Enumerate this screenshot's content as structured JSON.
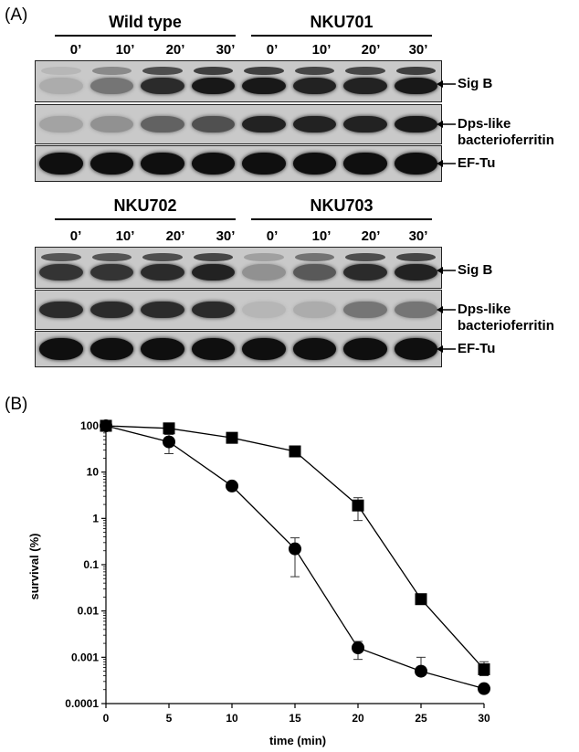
{
  "panel_a": {
    "label": "(A)",
    "upper": {
      "groups": [
        "Wild type",
        "NKU701"
      ],
      "timepoints": [
        "0’",
        "10’",
        "20’",
        "30’",
        "0’",
        "10’",
        "20’",
        "30’"
      ],
      "rows": [
        {
          "label_lines": [
            "Sig B"
          ],
          "intensity": [
            0.15,
            0.45,
            0.85,
            0.95,
            0.95,
            0.9,
            0.9,
            0.95
          ]
        },
        {
          "label_lines": [
            "Dps-like",
            "bacterioferritin"
          ],
          "intensity": [
            0.2,
            0.3,
            0.55,
            0.65,
            0.9,
            0.9,
            0.9,
            0.95
          ]
        },
        {
          "label_lines": [
            "EF-Tu"
          ],
          "intensity": [
            1,
            1,
            1,
            1,
            1,
            1,
            1,
            1
          ]
        }
      ]
    },
    "lower": {
      "groups": [
        "NKU702",
        "NKU703"
      ],
      "timepoints": [
        "0’",
        "10’",
        "20’",
        "30’",
        "0’",
        "10’",
        "20’",
        "30’"
      ],
      "rows": [
        {
          "label_lines": [
            "Sig B"
          ],
          "intensity": [
            0.8,
            0.8,
            0.85,
            0.9,
            0.3,
            0.6,
            0.85,
            0.9
          ]
        },
        {
          "label_lines": [
            "Dps-like",
            "bacterioferritin"
          ],
          "intensity": [
            0.85,
            0.85,
            0.85,
            0.85,
            0.1,
            0.15,
            0.45,
            0.45
          ]
        },
        {
          "label_lines": [
            "EF-Tu"
          ],
          "intensity": [
            1,
            1,
            1,
            1,
            1,
            1,
            1,
            1
          ]
        }
      ]
    }
  },
  "panel_b": {
    "label": "(B)"
  },
  "chart_data": {
    "type": "line",
    "xlabel": "time (min)",
    "ylabel": "survival (%)",
    "xlim": [
      0,
      30
    ],
    "ylim": [
      0.0001,
      100
    ],
    "yscale": "log",
    "x_ticks": [
      "0",
      "5",
      "10",
      "15",
      "20",
      "25",
      "30"
    ],
    "y_ticks": [
      "0.0001",
      "0.001",
      "0.01",
      "0.1",
      "1",
      "10",
      "100"
    ],
    "grid": false,
    "series": [
      {
        "marker": "square",
        "x": [
          0,
          5,
          10,
          15,
          20,
          25,
          30
        ],
        "y": [
          100,
          88,
          55,
          28,
          1.9,
          0.018,
          0.00055
        ],
        "err_low": [
          100,
          88,
          55,
          25,
          0.9,
          0.016,
          0.0004
        ],
        "err_high": [
          100,
          88,
          55,
          31,
          2.8,
          0.02,
          0.0008
        ]
      },
      {
        "marker": "circle",
        "x": [
          0,
          5,
          10,
          15,
          20,
          25,
          30
        ],
        "y": [
          100,
          45,
          5,
          0.22,
          0.0016,
          0.0005,
          0.00021
        ],
        "err_low": [
          100,
          25,
          5,
          0.055,
          0.0009,
          0.0005,
          0.00021
        ],
        "err_high": [
          100,
          65,
          5,
          0.38,
          0.0022,
          0.001,
          0.00021
        ]
      }
    ]
  }
}
